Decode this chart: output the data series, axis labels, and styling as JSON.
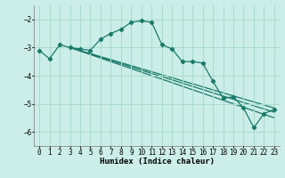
{
  "xlabel": "Humidex (Indice chaleur)",
  "bg_color": "#cceee8",
  "line_color": "#1a7a6a",
  "grid_color": "#aaddcc",
  "xlim": [
    -0.5,
    23.5
  ],
  "ylim": [
    -6.5,
    -1.5
  ],
  "yticks": [
    -6,
    -5,
    -4,
    -3,
    -2
  ],
  "xticks": [
    0,
    1,
    2,
    3,
    4,
    5,
    6,
    7,
    8,
    9,
    10,
    11,
    12,
    13,
    14,
    15,
    16,
    17,
    18,
    19,
    20,
    21,
    22,
    23
  ],
  "series1_x": [
    0,
    1,
    2,
    3,
    4,
    5,
    6,
    7,
    8,
    9,
    10,
    11,
    12,
    13,
    14,
    15,
    16,
    17,
    18,
    19,
    20,
    21,
    22,
    23
  ],
  "series1_y": [
    -3.1,
    -3.4,
    -2.9,
    -3.0,
    -3.05,
    -3.1,
    -2.7,
    -2.5,
    -2.35,
    -2.1,
    -2.05,
    -2.1,
    -2.9,
    -3.05,
    -3.5,
    -3.5,
    -3.55,
    -4.2,
    -4.8,
    -4.75,
    -5.15,
    -5.85,
    -5.35,
    -5.2
  ],
  "series2_x": [
    3,
    23
  ],
  "series2_y": [
    -3.0,
    -5.15
  ],
  "series3_x": [
    3,
    23
  ],
  "series3_y": [
    -3.0,
    -5.3
  ],
  "series4_x": [
    3,
    23
  ],
  "series4_y": [
    -3.0,
    -5.5
  ]
}
